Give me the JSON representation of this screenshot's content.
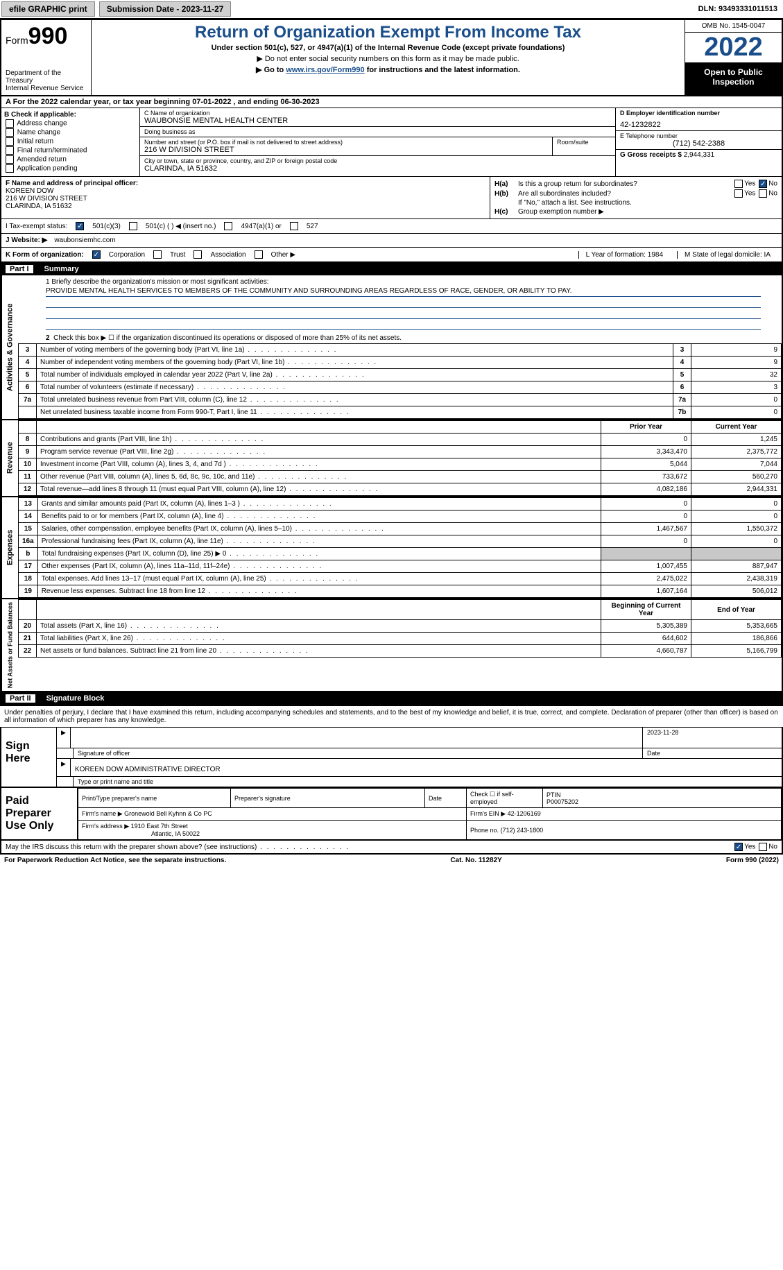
{
  "topbar": {
    "efile": "efile GRAPHIC print",
    "submission": "Submission Date - 2023-11-27",
    "dln": "DLN: 93493331011513"
  },
  "header": {
    "form_label": "Form",
    "form_no": "990",
    "dept": "Department of the Treasury\nInternal Revenue Service",
    "title": "Return of Organization Exempt From Income Tax",
    "subtitle": "Under section 501(c), 527, or 4947(a)(1) of the Internal Revenue Code (except private foundations)",
    "note1": "▶ Do not enter social security numbers on this form as it may be made public.",
    "note2": "▶ Go to www.irs.gov/Form990 for instructions and the latest information.",
    "link": "www.irs.gov/Form990",
    "omb": "OMB No. 1545-0047",
    "year": "2022",
    "open": "Open to Public Inspection"
  },
  "row_a": "A For the 2022 calendar year, or tax year beginning 07-01-2022   , and ending 06-30-2023",
  "col_b": {
    "label": "B Check if applicable:",
    "opts": [
      "Address change",
      "Name change",
      "Initial return",
      "Final return/terminated",
      "Amended return",
      "Application pending"
    ]
  },
  "col_c": {
    "name_label": "C Name of organization",
    "name": "WAUBONSIE MENTAL HEALTH CENTER",
    "dba_label": "Doing business as",
    "dba": "",
    "street_label": "Number and street (or P.O. box if mail is not delivered to street address)",
    "street": "216 W DIVISION STREET",
    "room_label": "Room/suite",
    "city_label": "City or town, state or province, country, and ZIP or foreign postal code",
    "city": "CLARINDA, IA  51632"
  },
  "col_d": {
    "ein_label": "D Employer identification number",
    "ein": "42-1232822",
    "phone_label": "E Telephone number",
    "phone": "(712) 542-2388",
    "gross_label": "G Gross receipts $",
    "gross": "2,944,331"
  },
  "officer": {
    "label": "F Name and address of principal officer:",
    "name": "KOREEN DOW",
    "street": "216 W DIVISION STREET",
    "city": "CLARINDA, IA  51632"
  },
  "h": {
    "a": "Is this a group return for subordinates?",
    "b": "Are all subordinates included?",
    "b2": "If \"No,\" attach a list. See instructions.",
    "c": "Group exemption number ▶",
    "yes": "Yes",
    "no": "No"
  },
  "status": {
    "label": "I   Tax-exempt status:",
    "c3": "501(c)(3)",
    "c": "501(c) (  ) ◀ (insert no.)",
    "a1": "4947(a)(1) or",
    "s527": "527"
  },
  "website": {
    "label": "J   Website: ▶",
    "val": "waubonsiemhc.com"
  },
  "korg": {
    "label": "K Form of organization:",
    "corp": "Corporation",
    "trust": "Trust",
    "assoc": "Association",
    "other": "Other ▶",
    "l": "L Year of formation: 1984",
    "m": "M State of legal domicile: IA"
  },
  "part1": {
    "num": "Part I",
    "title": "Summary"
  },
  "mission": {
    "prompt": "1   Briefly describe the organization's mission or most significant activities:",
    "text": "PROVIDE MENTAL HEALTH SERVICES TO MEMBERS OF THE COMMUNITY AND SURROUNDING AREAS REGARDLESS OF RACE, GENDER, OR ABILITY TO PAY."
  },
  "line2": "Check this box ▶ ☐ if the organization discontinued its operations or disposed of more than 25% of its net assets.",
  "gov_lines": [
    {
      "n": "3",
      "d": "Number of voting members of the governing body (Part VI, line 1a)",
      "b": "3",
      "v": "9"
    },
    {
      "n": "4",
      "d": "Number of independent voting members of the governing body (Part VI, line 1b)",
      "b": "4",
      "v": "9"
    },
    {
      "n": "5",
      "d": "Total number of individuals employed in calendar year 2022 (Part V, line 2a)",
      "b": "5",
      "v": "32"
    },
    {
      "n": "6",
      "d": "Total number of volunteers (estimate if necessary)",
      "b": "6",
      "v": "3"
    },
    {
      "n": "7a",
      "d": "Total unrelated business revenue from Part VIII, column (C), line 12",
      "b": "7a",
      "v": "0"
    },
    {
      "n": "",
      "d": "Net unrelated business taxable income from Form 990-T, Part I, line 11",
      "b": "7b",
      "v": "0"
    }
  ],
  "col_hdr": {
    "prior": "Prior Year",
    "cur": "Current Year"
  },
  "rev_lines": [
    {
      "n": "8",
      "d": "Contributions and grants (Part VIII, line 1h)",
      "p": "0",
      "c": "1,245"
    },
    {
      "n": "9",
      "d": "Program service revenue (Part VIII, line 2g)",
      "p": "3,343,470",
      "c": "2,375,772"
    },
    {
      "n": "10",
      "d": "Investment income (Part VIII, column (A), lines 3, 4, and 7d )",
      "p": "5,044",
      "c": "7,044"
    },
    {
      "n": "11",
      "d": "Other revenue (Part VIII, column (A), lines 5, 6d, 8c, 9c, 10c, and 11e)",
      "p": "733,672",
      "c": "560,270"
    },
    {
      "n": "12",
      "d": "Total revenue—add lines 8 through 11 (must equal Part VIII, column (A), line 12)",
      "p": "4,082,186",
      "c": "2,944,331"
    }
  ],
  "exp_lines": [
    {
      "n": "13",
      "d": "Grants and similar amounts paid (Part IX, column (A), lines 1–3 )",
      "p": "0",
      "c": "0"
    },
    {
      "n": "14",
      "d": "Benefits paid to or for members (Part IX, column (A), line 4)",
      "p": "0",
      "c": "0"
    },
    {
      "n": "15",
      "d": "Salaries, other compensation, employee benefits (Part IX, column (A), lines 5–10)",
      "p": "1,467,567",
      "c": "1,550,372"
    },
    {
      "n": "16a",
      "d": "Professional fundraising fees (Part IX, column (A), line 11e)",
      "p": "0",
      "c": "0"
    },
    {
      "n": "b",
      "d": "Total fundraising expenses (Part IX, column (D), line 25) ▶ 0",
      "p": "GRAY",
      "c": "GRAY"
    },
    {
      "n": "17",
      "d": "Other expenses (Part IX, column (A), lines 11a–11d, 11f–24e)",
      "p": "1,007,455",
      "c": "887,947"
    },
    {
      "n": "18",
      "d": "Total expenses. Add lines 13–17 (must equal Part IX, column (A), line 25)",
      "p": "2,475,022",
      "c": "2,438,319"
    },
    {
      "n": "19",
      "d": "Revenue less expenses. Subtract line 18 from line 12",
      "p": "1,607,164",
      "c": "506,012"
    }
  ],
  "na_hdr": {
    "b": "Beginning of Current Year",
    "e": "End of Year"
  },
  "na_lines": [
    {
      "n": "20",
      "d": "Total assets (Part X, line 16)",
      "p": "5,305,389",
      "c": "5,353,665"
    },
    {
      "n": "21",
      "d": "Total liabilities (Part X, line 26)",
      "p": "644,602",
      "c": "186,866"
    },
    {
      "n": "22",
      "d": "Net assets or fund balances. Subtract line 21 from line 20",
      "p": "4,660,787",
      "c": "5,166,799"
    }
  ],
  "part2": {
    "num": "Part II",
    "title": "Signature Block"
  },
  "penalty": "Under penalties of perjury, I declare that I have examined this return, including accompanying schedules and statements, and to the best of my knowledge and belief, it is true, correct, and complete. Declaration of preparer (other than officer) is based on all information of which preparer has any knowledge.",
  "sign": {
    "here": "Sign Here",
    "sig_label": "Signature of officer",
    "date_label": "Date",
    "date": "2023-11-28",
    "name": "KOREEN DOW  ADMINISTRATIVE DIRECTOR",
    "name_label": "Type or print name and title"
  },
  "prep": {
    "title": "Paid Preparer Use Only",
    "h1": "Print/Type preparer's name",
    "h2": "Preparer's signature",
    "h3": "Date",
    "h4_check": "Check ☐ if self-employed",
    "h4_ptin_l": "PTIN",
    "ptin": "P00075202",
    "firm_l": "Firm's name    ▶",
    "firm": "Gronewold Bell Kyhnn & Co PC",
    "ein_l": "Firm's EIN ▶",
    "ein": "42-1206169",
    "addr_l": "Firm's address ▶",
    "addr1": "1910 East 7th Street",
    "addr2": "Atlantic, IA  50022",
    "phone_l": "Phone no.",
    "phone": "(712) 243-1800"
  },
  "discuss": "May the IRS discuss this return with the preparer shown above? (see instructions)",
  "bottom": {
    "pra": "For Paperwork Reduction Act Notice, see the separate instructions.",
    "cat": "Cat. No. 11282Y",
    "form": "Form 990 (2022)"
  },
  "vtabs": {
    "gov": "Activities & Governance",
    "rev": "Revenue",
    "exp": "Expenses",
    "na": "Net Assets or Fund Balances"
  }
}
